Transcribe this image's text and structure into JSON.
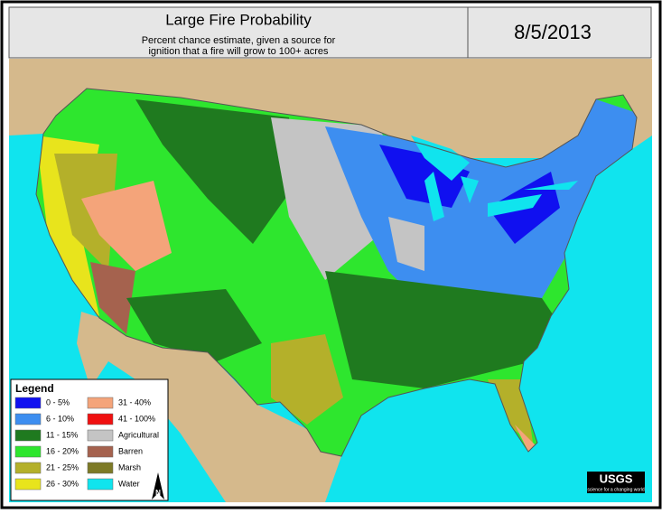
{
  "header": {
    "title": "Large Fire Probability",
    "subtitle": [
      "Percent chance estimate, given a source for",
      "ignition that a fire will grow to 100+ acres"
    ],
    "date": "8/5/2013"
  },
  "legend": {
    "title": "Legend",
    "items": [
      {
        "label": "0 - 5%",
        "color": "#1010f0"
      },
      {
        "label": "6 - 10%",
        "color": "#3d8ef0"
      },
      {
        "label": "11 - 15%",
        "color": "#1f7a1f"
      },
      {
        "label": "16 - 20%",
        "color": "#2ee62e"
      },
      {
        "label": "21 - 25%",
        "color": "#b4b02a"
      },
      {
        "label": "26 - 30%",
        "color": "#e8e41c"
      },
      {
        "label": "31 - 40%",
        "color": "#f4a47a"
      },
      {
        "label": "41 - 100%",
        "color": "#f01010"
      },
      {
        "label": "Agricultural",
        "color": "#c4c4c4"
      },
      {
        "label": "Barren",
        "color": "#a5624e"
      },
      {
        "label": "Marsh",
        "color": "#7d7a26"
      },
      {
        "label": "Water",
        "color": "#10e4ee"
      }
    ]
  },
  "north_arrow": "N",
  "logo": {
    "name": "USGS",
    "tagline": "science for a changing world"
  }
}
